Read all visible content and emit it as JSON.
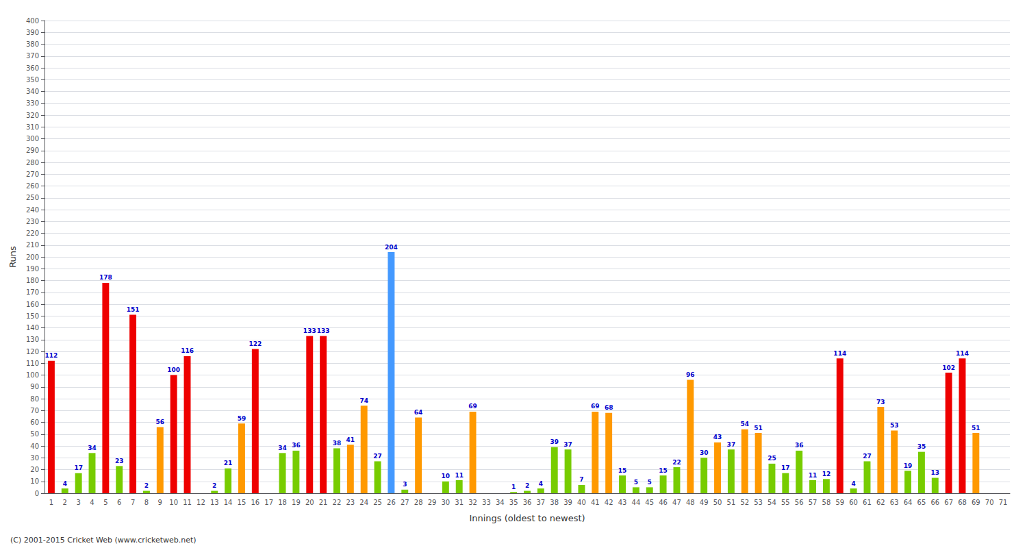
{
  "chart_data": {
    "type": "bar",
    "xlabel": "Innings (oldest to newest)",
    "ylabel": "Runs",
    "annotations": [
      "(C) 2001-2015 Cricket Web (www.cricketweb.net)"
    ],
    "categories": [
      1,
      2,
      3,
      4,
      5,
      6,
      7,
      8,
      9,
      10,
      11,
      12,
      13,
      14,
      15,
      16,
      17,
      18,
      19,
      20,
      21,
      22,
      23,
      24,
      25,
      26,
      27,
      28,
      29,
      30,
      31,
      32,
      33,
      34,
      35,
      36,
      37,
      38,
      39,
      40,
      41,
      42,
      43,
      44,
      45,
      46,
      47,
      48,
      49,
      50,
      51,
      52,
      53,
      54,
      55,
      56,
      57,
      58,
      59,
      60,
      61,
      62,
      63,
      64,
      65,
      66,
      67,
      68,
      69,
      70,
      71
    ],
    "values": [
      112,
      4,
      17,
      34,
      178,
      23,
      151,
      2,
      56,
      100,
      116,
      0,
      2,
      21,
      59,
      122,
      0,
      34,
      36,
      133,
      133,
      38,
      41,
      74,
      27,
      204,
      3,
      64,
      0,
      10,
      11,
      69,
      0,
      0,
      1,
      2,
      4,
      39,
      37,
      7,
      69,
      68,
      15,
      5,
      5,
      15,
      22,
      96,
      30,
      43,
      37,
      54,
      51,
      25,
      17,
      36,
      11,
      12,
      114,
      4,
      27,
      73,
      53,
      19,
      35,
      13,
      102,
      114,
      51,
      0,
      0
    ],
    "value_labels": [
      "112",
      "4",
      "17",
      "34",
      "178",
      "23",
      "151",
      "2",
      "56",
      "100",
      "116",
      null,
      "2",
      "21",
      "59",
      "122",
      null,
      "34",
      "36",
      "133",
      "133",
      "38",
      "41",
      "74",
      "27",
      "204",
      "3",
      "64",
      null,
      "10",
      "11",
      "69",
      null,
      null,
      "1",
      "2",
      "4",
      "39",
      "37",
      "7",
      "69",
      "68",
      "15",
      "5",
      "5",
      "15",
      "22",
      "96",
      "30",
      "43",
      "37",
      "54",
      "51",
      "25",
      "17",
      "36",
      "11",
      "12",
      "114",
      "4",
      "27",
      "73",
      "53",
      "19",
      "35",
      "13",
      "102",
      "114",
      "51",
      null,
      null
    ],
    "colors": [
      "#ee0000",
      "#77cc00",
      "#77cc00",
      "#77cc00",
      "#ee0000",
      "#77cc00",
      "#ee0000",
      "#77cc00",
      "#ff9900",
      "#ee0000",
      "#ee0000",
      "#ff9900",
      "#77cc00",
      "#77cc00",
      "#ff9900",
      "#ee0000",
      "#ff9900",
      "#77cc00",
      "#77cc00",
      "#ee0000",
      "#ee0000",
      "#77cc00",
      "#ff9900",
      "#ff9900",
      "#77cc00",
      "#4499ff",
      "#77cc00",
      "#ff9900",
      "#77cc00",
      "#77cc00",
      "#77cc00",
      "#ff9900",
      "#77cc00",
      "#77cc00",
      "#77cc00",
      "#77cc00",
      "#77cc00",
      "#77cc00",
      "#77cc00",
      "#77cc00",
      "#ff9900",
      "#ff9900",
      "#77cc00",
      "#77cc00",
      "#77cc00",
      "#77cc00",
      "#77cc00",
      "#ff9900",
      "#77cc00",
      "#ff9900",
      "#77cc00",
      "#ff9900",
      "#ff9900",
      "#77cc00",
      "#77cc00",
      "#77cc00",
      "#77cc00",
      "#77cc00",
      "#ee0000",
      "#77cc00",
      "#77cc00",
      "#ff9900",
      "#ff9900",
      "#77cc00",
      "#77cc00",
      "#77cc00",
      "#ee0000",
      "#ee0000",
      "#ff9900",
      "#ff9900",
      "#77cc00"
    ],
    "ylim": [
      0,
      400
    ],
    "yticks": [
      0,
      10,
      20,
      30,
      40,
      50,
      60,
      70,
      80,
      90,
      100,
      110,
      120,
      130,
      140,
      150,
      160,
      170,
      180,
      190,
      200,
      210,
      220,
      230,
      240,
      250,
      260,
      270,
      280,
      290,
      300,
      310,
      320,
      330,
      340,
      350,
      360,
      370,
      380,
      390,
      400
    ],
    "grid": true,
    "data_labels": true
  }
}
